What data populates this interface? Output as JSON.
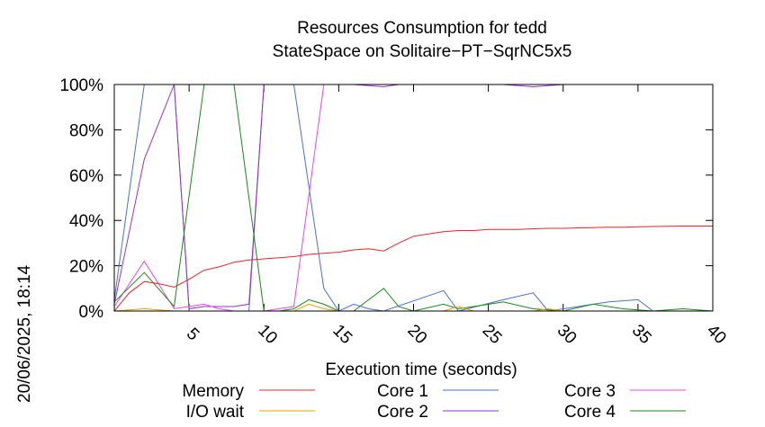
{
  "chart_data": {
    "type": "line",
    "title": "Resources Consumption for tedd",
    "subtitle": "StateSpace on Solitaire−PT−SqrNC5x5",
    "xlabel": "Execution time (seconds)",
    "ylabel": "",
    "xlim": [
      0,
      40
    ],
    "ylim": [
      0,
      100
    ],
    "x_ticks": [
      "5",
      "10",
      "15",
      "20",
      "25",
      "30",
      "35",
      "40"
    ],
    "y_ticks": [
      "0%",
      "20%",
      "40%",
      "60%",
      "80%",
      "100%"
    ],
    "timestamp": "20/06/2025, 18:14",
    "grid": false,
    "legend_position": "bottom",
    "series": [
      {
        "name": "Memory",
        "color": "#e8252a",
        "points": [
          [
            0,
            0
          ],
          [
            1,
            8
          ],
          [
            2,
            13
          ],
          [
            3,
            12
          ],
          [
            4,
            10.5
          ],
          [
            5,
            14
          ],
          [
            6,
            18
          ],
          [
            7,
            19.5
          ],
          [
            8,
            21.5
          ],
          [
            9,
            22.5
          ],
          [
            10,
            23
          ],
          [
            11,
            23.5
          ],
          [
            12,
            24
          ],
          [
            13,
            25
          ],
          [
            14,
            25.5
          ],
          [
            15,
            26
          ],
          [
            16,
            27
          ],
          [
            17,
            27.5
          ],
          [
            18,
            26.5
          ],
          [
            19,
            30
          ],
          [
            20,
            33
          ],
          [
            21,
            34
          ],
          [
            22,
            35
          ],
          [
            23,
            35.5
          ],
          [
            24,
            35.5
          ],
          [
            25,
            36
          ],
          [
            26,
            36
          ],
          [
            27,
            36
          ],
          [
            28,
            36.3
          ],
          [
            29,
            36.5
          ],
          [
            30,
            36.5
          ],
          [
            31,
            36.7
          ],
          [
            32,
            36.8
          ],
          [
            33,
            37
          ],
          [
            34,
            37
          ],
          [
            35,
            37.2
          ],
          [
            36,
            37.3
          ],
          [
            37,
            37.4
          ],
          [
            38,
            37.5
          ],
          [
            39,
            37.5
          ],
          [
            40,
            37.5
          ]
        ]
      },
      {
        "name": "I/O wait",
        "color": "#e8a000",
        "points": [
          [
            0,
            0
          ],
          [
            2,
            1
          ],
          [
            4,
            0
          ],
          [
            6,
            0
          ],
          [
            8,
            0
          ],
          [
            10,
            0
          ],
          [
            12,
            0
          ],
          [
            13,
            3
          ],
          [
            14,
            1
          ],
          [
            15,
            0
          ],
          [
            16,
            0
          ],
          [
            18,
            0
          ],
          [
            20,
            0
          ],
          [
            22,
            0
          ],
          [
            23,
            2
          ],
          [
            24,
            0
          ],
          [
            26,
            0
          ],
          [
            28,
            0
          ],
          [
            29,
            1
          ],
          [
            30,
            0
          ],
          [
            32,
            0
          ],
          [
            34,
            0
          ],
          [
            36,
            0
          ],
          [
            38,
            0
          ],
          [
            40,
            0
          ]
        ]
      },
      {
        "name": "Core 1",
        "color": "#4a6fd8",
        "points": [
          [
            0,
            5
          ],
          [
            2,
            100
          ],
          [
            4,
            100
          ],
          [
            5,
            0
          ],
          [
            6,
            0
          ],
          [
            8,
            0
          ],
          [
            9,
            0
          ],
          [
            10,
            100
          ],
          [
            12,
            100
          ],
          [
            14,
            10
          ],
          [
            15,
            0
          ],
          [
            16,
            3
          ],
          [
            17,
            1
          ],
          [
            18,
            0
          ],
          [
            22,
            9
          ],
          [
            23,
            0
          ],
          [
            26,
            5
          ],
          [
            28,
            8
          ],
          [
            29,
            0
          ],
          [
            31,
            2
          ],
          [
            33,
            4
          ],
          [
            35,
            5
          ],
          [
            36,
            0
          ],
          [
            40,
            0
          ]
        ]
      },
      {
        "name": "Core 2",
        "color": "#9932cc",
        "points": [
          [
            0,
            3
          ],
          [
            2,
            67
          ],
          [
            4,
            100
          ],
          [
            5,
            1
          ],
          [
            6,
            2
          ],
          [
            8,
            2
          ],
          [
            9,
            3
          ],
          [
            10,
            100
          ],
          [
            12,
            100
          ],
          [
            14,
            100
          ],
          [
            16,
            100
          ],
          [
            18,
            99
          ],
          [
            19,
            100
          ],
          [
            22,
            100
          ],
          [
            24,
            100
          ],
          [
            26,
            100
          ],
          [
            28,
            99
          ],
          [
            30,
            100
          ],
          [
            32,
            100
          ],
          [
            34,
            100
          ],
          [
            36,
            100
          ],
          [
            38,
            100
          ],
          [
            40,
            100
          ]
        ]
      },
      {
        "name": "Core 3",
        "color": "#ee44ee",
        "points": [
          [
            0,
            2
          ],
          [
            2,
            22
          ],
          [
            4,
            1
          ],
          [
            6,
            3
          ],
          [
            7,
            1
          ],
          [
            8,
            0
          ],
          [
            10,
            0
          ],
          [
            12,
            2
          ],
          [
            14,
            100
          ],
          [
            16,
            100
          ],
          [
            18,
            100
          ],
          [
            20,
            100
          ],
          [
            22,
            100
          ],
          [
            24,
            100
          ],
          [
            26,
            100
          ],
          [
            28,
            100
          ],
          [
            30,
            100
          ],
          [
            32,
            100
          ],
          [
            34,
            100
          ],
          [
            36,
            100
          ],
          [
            38,
            100
          ],
          [
            40,
            100
          ]
        ]
      },
      {
        "name": "Core 4",
        "color": "#1a8a1a",
        "points": [
          [
            0,
            4
          ],
          [
            2,
            17
          ],
          [
            4,
            2
          ],
          [
            6,
            100
          ],
          [
            8,
            100
          ],
          [
            9,
            50
          ],
          [
            10,
            0
          ],
          [
            11,
            0
          ],
          [
            12,
            1
          ],
          [
            13,
            5
          ],
          [
            14,
            3
          ],
          [
            15,
            0
          ],
          [
            16,
            0
          ],
          [
            18,
            10
          ],
          [
            19,
            2
          ],
          [
            20,
            0
          ],
          [
            22,
            3
          ],
          [
            23,
            1
          ],
          [
            24,
            2
          ],
          [
            26,
            4
          ],
          [
            28,
            1
          ],
          [
            30,
            0
          ],
          [
            32,
            3
          ],
          [
            34,
            1
          ],
          [
            36,
            0
          ],
          [
            38,
            1
          ],
          [
            40,
            0
          ]
        ]
      }
    ]
  }
}
